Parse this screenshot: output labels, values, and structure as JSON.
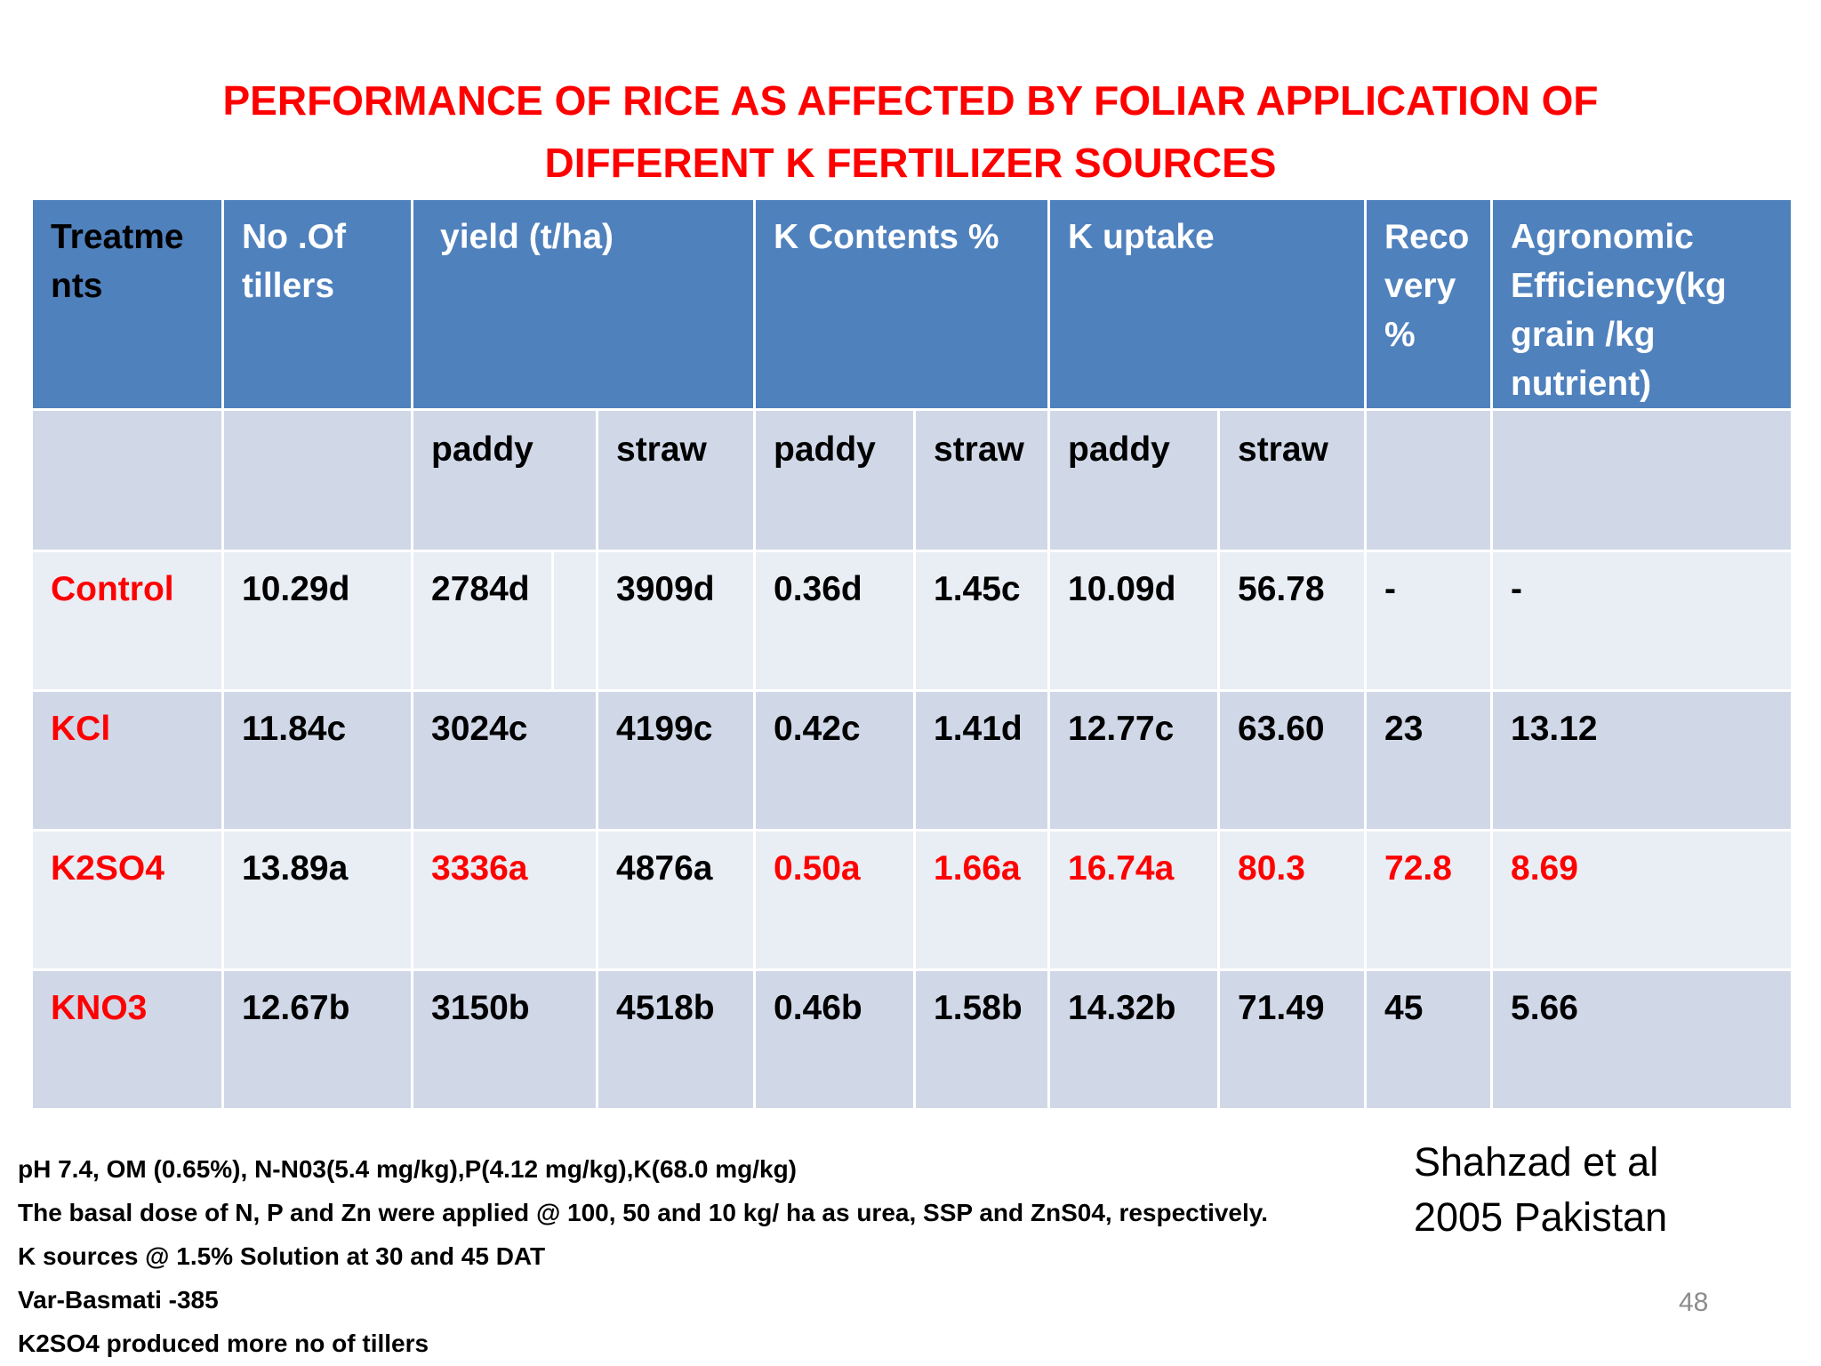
{
  "title": {
    "line1": "PERFORMANCE OF RICE AS AFFECTED BY FOLIAR APPLICATION OF",
    "line2": "DIFFERENT K  FERTILIZER SOURCES"
  },
  "table": {
    "headers": {
      "treatments": "Treatme nts",
      "tillers": "No .Of tillers",
      "yield": "yield (t/ha)",
      "k_contents": "K Contents  %",
      "k_uptake": "K uptake",
      "recovery": "Reco very %",
      "agronomic": "Agronomic Efficiency(kg grain /kg nutrient)"
    },
    "subheaders": {
      "yield_paddy": "paddy",
      "yield_straw": "straw",
      "kc_paddy": "paddy",
      "kc_straw": "straw",
      "ku_paddy": "paddy",
      "ku_straw": "straw"
    },
    "rows": [
      {
        "treatment": "Control",
        "tillers": "10.29d",
        "yield_paddy": "2784d",
        "yield_straw": "3909d",
        "kc_paddy": "0.36d",
        "kc_straw": "1.45c",
        "ku_paddy": "10.09d",
        "ku_straw": "56.78",
        "recovery": "-",
        "agronomic": "-"
      },
      {
        "treatment": "KCl",
        "tillers": "11.84c",
        "yield_paddy": "3024c",
        "yield_straw": "4199c",
        "kc_paddy": "0.42c",
        "kc_straw": "1.41d",
        "ku_paddy": "12.77c",
        "ku_straw": "63.60",
        "recovery": "23",
        "agronomic": "13.12"
      },
      {
        "treatment": "K2SO4",
        "tillers": "13.89a",
        "yield_paddy": "3336a",
        "yield_straw": "4876a",
        "kc_paddy": "0.50a",
        "kc_straw": "1.66a",
        "ku_paddy": "16.74a",
        "ku_straw": "80.3",
        "recovery": "72.8",
        "agronomic": "8.69"
      },
      {
        "treatment": "KNO3",
        "tillers": "12.67b",
        "yield_paddy": "3150b",
        "yield_straw": "4518b",
        "kc_paddy": "0.46b",
        "kc_straw": "1.58b",
        "ku_paddy": "14.32b",
        "ku_straw": "71.49",
        "recovery": "45",
        "agronomic": "5.66"
      }
    ]
  },
  "notes": [
    "pH 7.4, OM (0.65%), N-N03(5.4 mg/kg),P(4.12 mg/kg),K(68.0 mg/kg)",
    "The basal dose of N, P and Zn were applied @ 100, 50 and 10 kg/ ha as urea, SSP and ZnS04, respectively.",
    "K sources @ 1.5% Solution at 30 and 45 DAT",
    "Var-Basmati -385",
    "K2SO4 produced more no of tillers"
  ],
  "citation": {
    "line1": "Shahzad et al",
    "line2": "2005  Pakistan"
  },
  "page_number": "48",
  "colors": {
    "title": "#ff0000",
    "header_bg": "#4f81bd",
    "row_dark": "#d0d8e8",
    "row_light": "#e9edf4",
    "highlight": "#ff0000"
  }
}
